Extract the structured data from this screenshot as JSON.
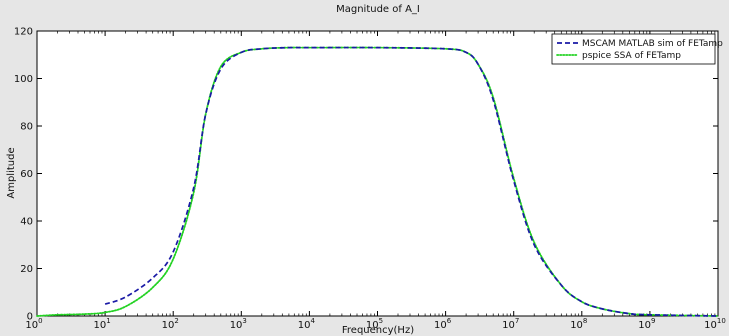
{
  "chart_data": {
    "type": "line",
    "title": "Magnitude of A_I",
    "xlabel": "Frequency(Hz)",
    "ylabel": "Amplitude",
    "xscale": "log",
    "xlim": [
      1,
      10000000000
    ],
    "ylim": [
      0,
      120
    ],
    "x_ticks": [
      1,
      10,
      100,
      1000,
      10000,
      100000,
      1000000,
      10000000,
      100000000,
      1000000000,
      10000000000
    ],
    "x_tick_labels": [
      {
        "base": "10",
        "exp": "0"
      },
      {
        "base": "10",
        "exp": "1"
      },
      {
        "base": "10",
        "exp": "2"
      },
      {
        "base": "10",
        "exp": "3"
      },
      {
        "base": "10",
        "exp": "4"
      },
      {
        "base": "10",
        "exp": "5"
      },
      {
        "base": "10",
        "exp": "6"
      },
      {
        "base": "10",
        "exp": "7"
      },
      {
        "base": "10",
        "exp": "8"
      },
      {
        "base": "10",
        "exp": "9"
      },
      {
        "base": "10",
        "exp": "10"
      }
    ],
    "y_ticks": [
      0,
      20,
      40,
      60,
      80,
      100,
      120
    ],
    "y_tick_labels": [
      "0",
      "20",
      "40",
      "60",
      "80",
      "100",
      "120"
    ],
    "grid": false,
    "legend": {
      "position": "top-right",
      "entries": [
        {
          "label": "MSCAM MATLAB sim of FETamp",
          "color": "#1a1aa6",
          "style": "dashed"
        },
        {
          "label": "pspice SSA of FETamp",
          "color": "#22d222",
          "style": "dotted"
        }
      ]
    },
    "series": [
      {
        "name": "MSCAM MATLAB sim of FETamp",
        "color": "#1a1aa6",
        "style": "dashed",
        "x": [
          10,
          20,
          50,
          100,
          200,
          300,
          500,
          1000,
          2000,
          5000,
          10000,
          100000,
          1000000,
          2000000,
          3000000,
          5000000,
          10000000,
          20000000,
          50000000,
          100000000,
          200000000,
          500000000,
          1000000000,
          10000000000
        ],
        "y": [
          5,
          8,
          16,
          27,
          54,
          85,
          104,
          111,
          112.5,
          113,
          113,
          113,
          112.5,
          111,
          106,
          91,
          57,
          30,
          13,
          6,
          3,
          1,
          0.5,
          0
        ]
      },
      {
        "name": "pspice SSA of FETamp",
        "color": "#22d222",
        "style": "dotted",
        "x": [
          1,
          2,
          5,
          10,
          20,
          50,
          100,
          200,
          300,
          500,
          1000,
          2000,
          5000,
          10000,
          100000,
          1000000,
          2000000,
          3000000,
          5000000,
          10000000,
          20000000,
          50000000,
          100000000,
          200000000,
          500000000,
          1000000000,
          10000000000
        ],
        "y": [
          0,
          0.5,
          0.8,
          1.5,
          4,
          12,
          24,
          52,
          85,
          105,
          111,
          112.5,
          113,
          113,
          113,
          112.5,
          111,
          106,
          92,
          58,
          31,
          13,
          6,
          3,
          1,
          0.5,
          0
        ]
      }
    ]
  }
}
